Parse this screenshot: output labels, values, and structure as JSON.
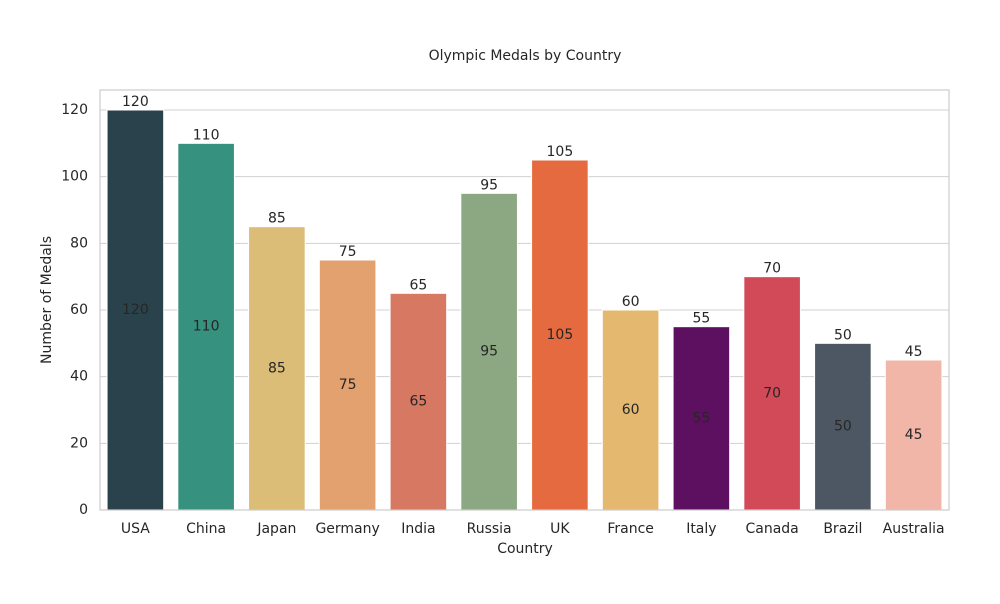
{
  "chart_data": {
    "type": "bar",
    "title": "Olympic Medals by Country",
    "x_label": "Country",
    "y_label": "Number of Medals",
    "categories": [
      "USA",
      "China",
      "Japan",
      "Germany",
      "India",
      "Russia",
      "UK",
      "France",
      "Italy",
      "Canada",
      "Brazil",
      "Australia"
    ],
    "values": [
      120,
      110,
      85,
      75,
      65,
      95,
      105,
      60,
      55,
      70,
      50,
      45
    ],
    "colors": [
      "#2a424b",
      "#36917f",
      "#dbbd77",
      "#e3a16f",
      "#d77862",
      "#8ba882",
      "#e56a3f",
      "#e4b96f",
      "#5e1060",
      "#d24a58",
      "#4d5763",
      "#f2b6a8"
    ],
    "ylim": [
      0,
      126
    ],
    "yticks": [
      0,
      20,
      40,
      60,
      80,
      100,
      120
    ],
    "grid": true
  }
}
